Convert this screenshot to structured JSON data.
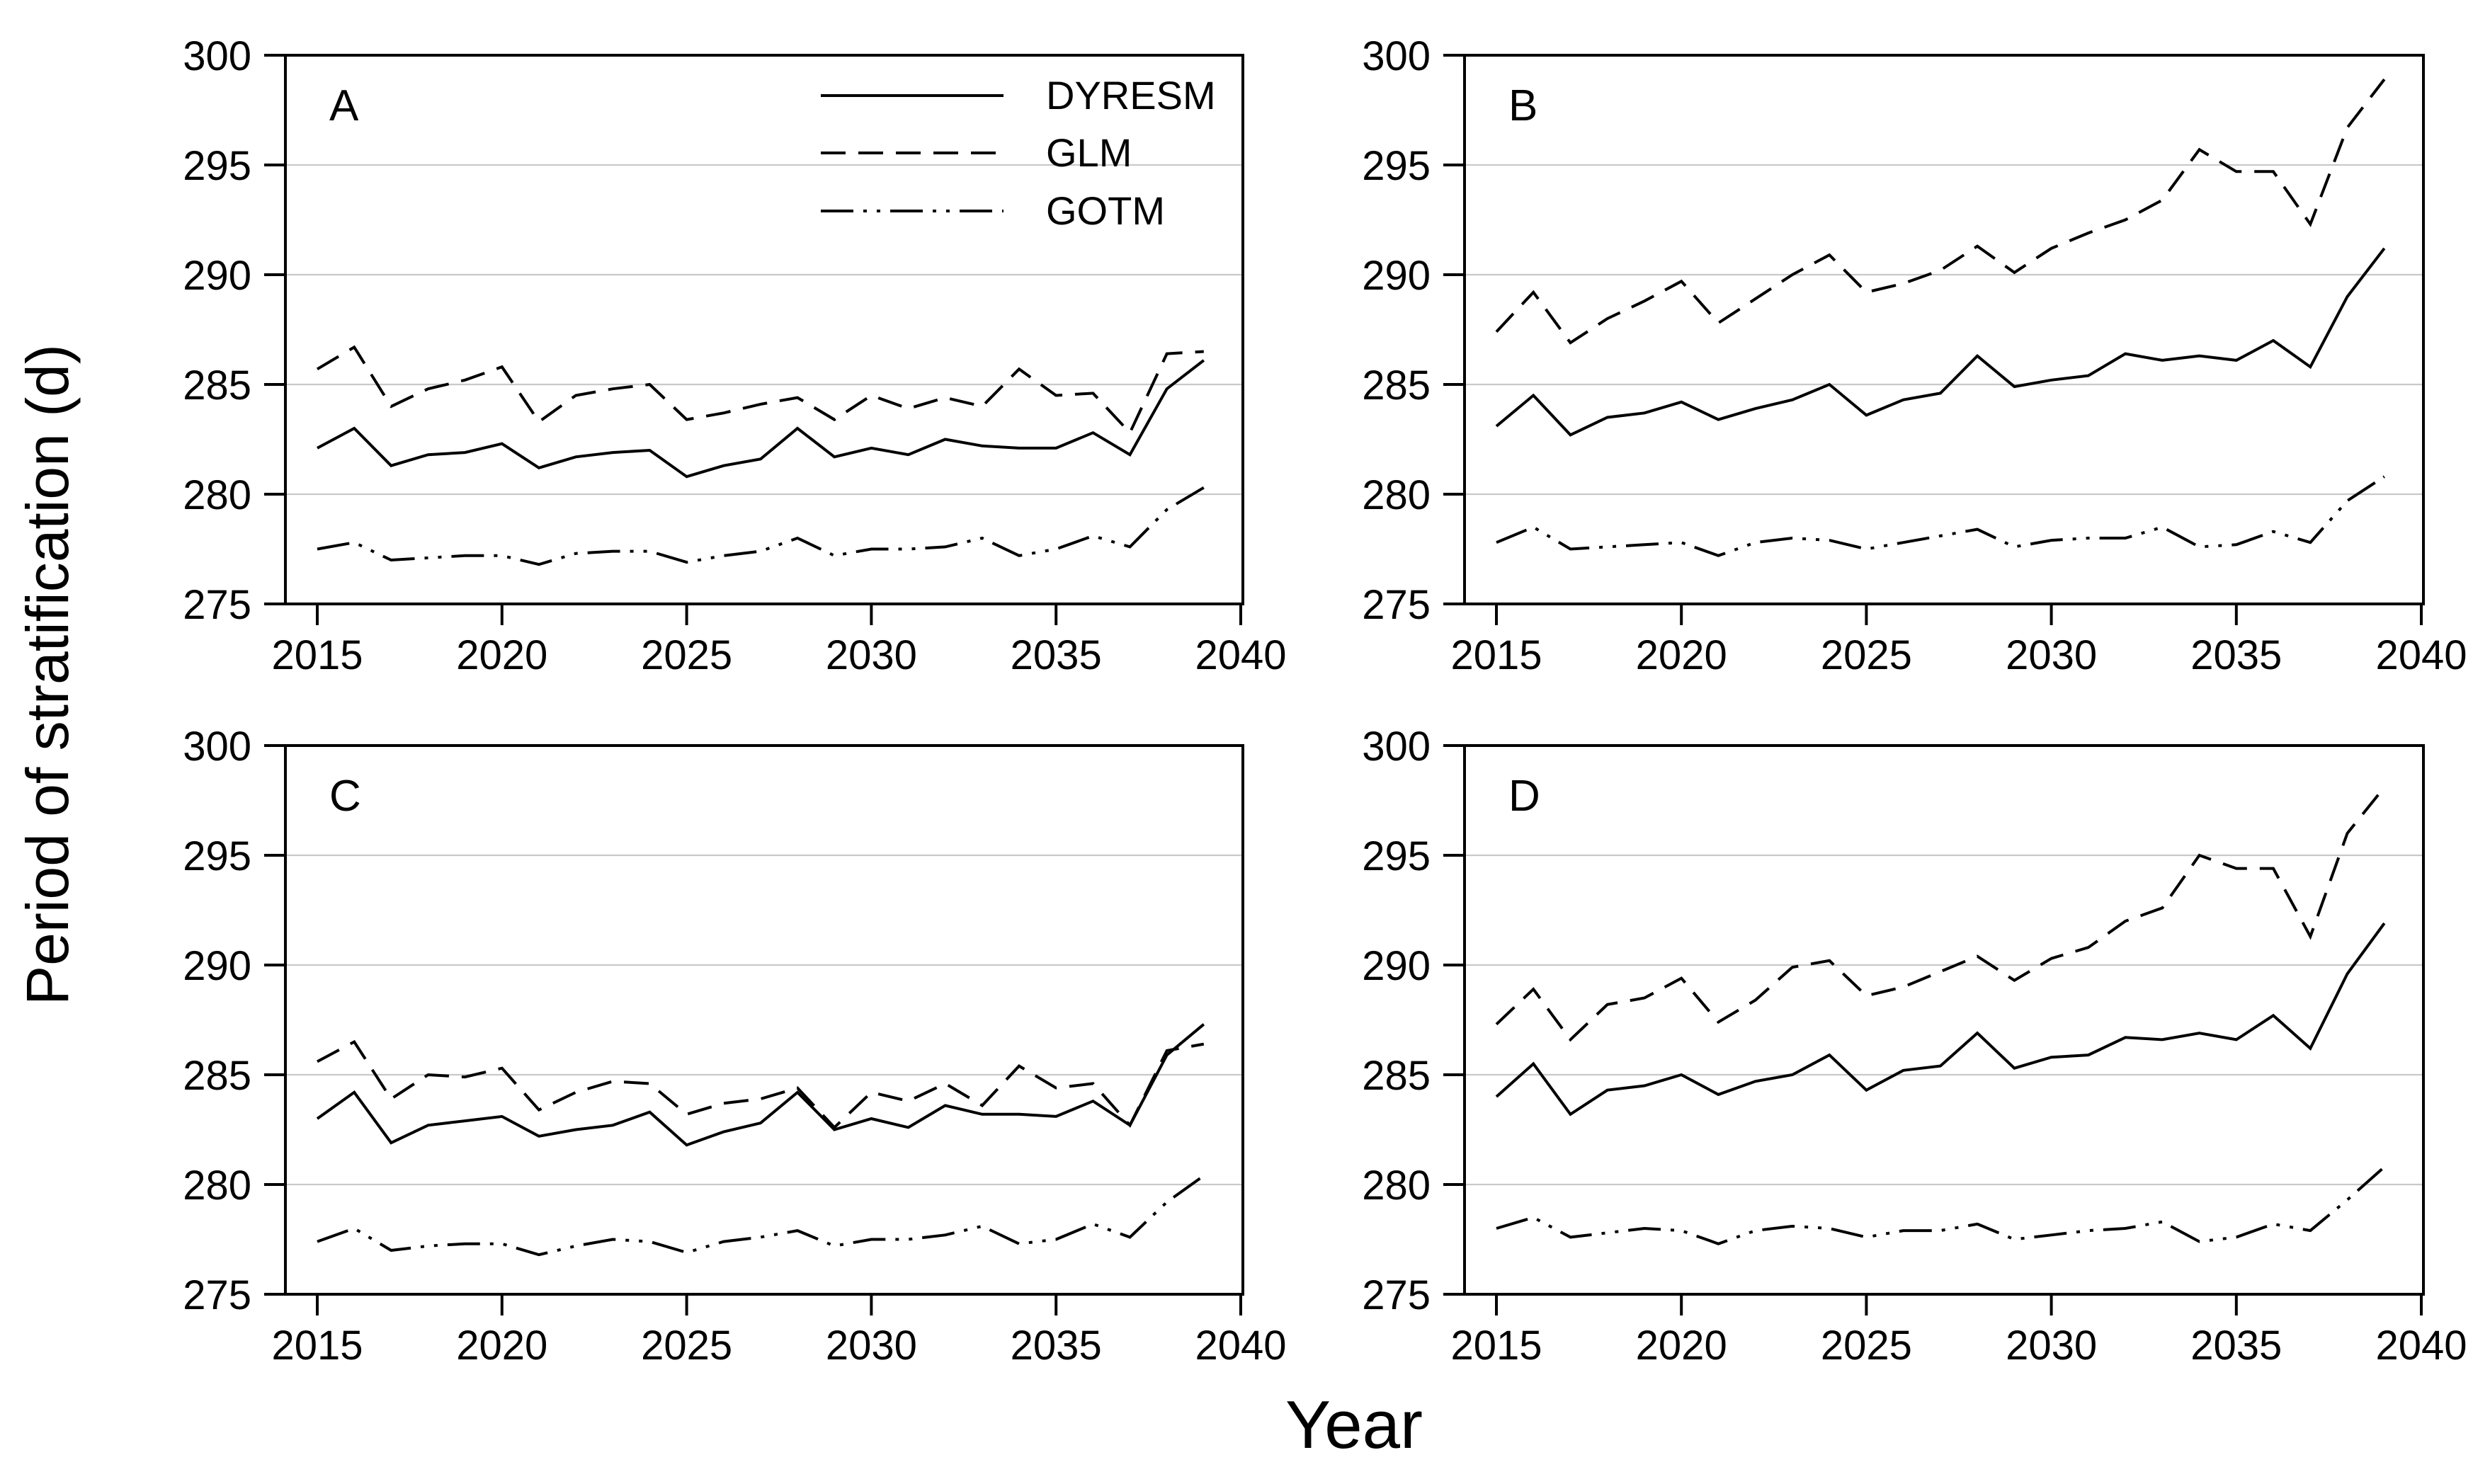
{
  "figure": {
    "x_axis_title": "Year",
    "y_axis_title": "Period of stratification (d)",
    "y_ticks": [
      300,
      295,
      290,
      285,
      280,
      275
    ],
    "x_ticks": [
      2015,
      2020,
      2025,
      2030,
      2035,
      2040
    ],
    "ylim": [
      275,
      300
    ],
    "xlim": [
      2015,
      2040
    ],
    "grid": true,
    "legend_position": "top of panel A",
    "legend": [
      {
        "label": "DYRESM",
        "line_style": "solid"
      },
      {
        "label": "GLM",
        "line_style": "dashed"
      },
      {
        "label": "GOTM",
        "line_style": "dash-dot-dot"
      }
    ],
    "colors": {
      "line": "#000000",
      "grid": "#c9c9c9",
      "background": "#ffffff"
    }
  },
  "chart_data": [
    {
      "type": "line",
      "panel_label": "A",
      "x": [
        2015,
        2016,
        2017,
        2018,
        2019,
        2020,
        2021,
        2022,
        2023,
        2024,
        2025,
        2026,
        2027,
        2028,
        2029,
        2030,
        2031,
        2032,
        2033,
        2034,
        2035,
        2036,
        2037,
        2038,
        2039
      ],
      "series": [
        {
          "name": "DYRESM",
          "line_style": "solid",
          "values": [
            282.1,
            283.0,
            281.3,
            281.8,
            281.9,
            282.3,
            281.2,
            281.7,
            281.9,
            282.0,
            280.8,
            281.3,
            281.6,
            283.0,
            281.7,
            282.1,
            281.8,
            282.5,
            282.2,
            282.1,
            282.1,
            282.8,
            281.8,
            284.8,
            286.1
          ]
        },
        {
          "name": "GLM",
          "line_style": "dashed",
          "values": [
            285.7,
            286.7,
            284.0,
            284.8,
            285.2,
            285.8,
            283.3,
            284.5,
            284.8,
            285.0,
            283.4,
            283.7,
            284.1,
            284.4,
            283.4,
            284.5,
            283.9,
            284.4,
            284.0,
            285.7,
            284.5,
            284.6,
            282.8,
            286.4,
            286.5
          ]
        },
        {
          "name": "GOTM",
          "line_style": "dash-dot-dot",
          "values": [
            277.5,
            277.8,
            277.0,
            277.1,
            277.2,
            277.2,
            276.8,
            277.3,
            277.4,
            277.4,
            276.9,
            277.2,
            277.4,
            278.0,
            277.2,
            277.5,
            277.5,
            277.6,
            278.0,
            277.2,
            277.5,
            278.1,
            277.6,
            279.3,
            280.3
          ]
        }
      ],
      "ylim": [
        275,
        300
      ]
    },
    {
      "type": "line",
      "panel_label": "B",
      "x": [
        2015,
        2016,
        2017,
        2018,
        2019,
        2020,
        2021,
        2022,
        2023,
        2024,
        2025,
        2026,
        2027,
        2028,
        2029,
        2030,
        2031,
        2032,
        2033,
        2034,
        2035,
        2036,
        2037,
        2038,
        2039
      ],
      "series": [
        {
          "name": "DYRESM",
          "line_style": "solid",
          "values": [
            283.1,
            284.5,
            282.7,
            283.5,
            283.7,
            284.2,
            283.4,
            283.9,
            284.3,
            285.0,
            283.6,
            284.3,
            284.6,
            286.3,
            284.9,
            285.2,
            285.4,
            286.4,
            286.1,
            286.3,
            286.1,
            287.0,
            285.8,
            289.0,
            291.2
          ]
        },
        {
          "name": "GLM",
          "line_style": "dashed",
          "values": [
            287.4,
            289.2,
            286.9,
            288.0,
            288.8,
            289.7,
            287.8,
            288.9,
            290.0,
            290.9,
            289.2,
            289.6,
            290.2,
            291.3,
            290.1,
            291.2,
            291.9,
            292.5,
            293.4,
            295.7,
            294.7,
            294.7,
            292.3,
            296.7,
            298.9
          ]
        },
        {
          "name": "GOTM",
          "line_style": "dash-dot-dot",
          "values": [
            277.8,
            278.5,
            277.5,
            277.6,
            277.7,
            277.8,
            277.2,
            277.8,
            278.0,
            277.9,
            277.5,
            277.8,
            278.1,
            278.4,
            277.6,
            277.9,
            278.0,
            278.0,
            278.5,
            277.6,
            277.7,
            278.3,
            277.8,
            279.7,
            280.8
          ]
        }
      ],
      "ylim": [
        275,
        300
      ]
    },
    {
      "type": "line",
      "panel_label": "C",
      "x": [
        2015,
        2016,
        2017,
        2018,
        2019,
        2020,
        2021,
        2022,
        2023,
        2024,
        2025,
        2026,
        2027,
        2028,
        2029,
        2030,
        2031,
        2032,
        2033,
        2034,
        2035,
        2036,
        2037,
        2038,
        2039
      ],
      "series": [
        {
          "name": "DYRESM",
          "line_style": "solid",
          "values": [
            283.0,
            284.2,
            281.9,
            282.7,
            282.9,
            283.1,
            282.2,
            282.5,
            282.7,
            283.3,
            281.8,
            282.4,
            282.8,
            284.2,
            282.5,
            283.0,
            282.6,
            283.6,
            283.2,
            283.2,
            283.1,
            283.8,
            282.7,
            285.9,
            287.3
          ]
        },
        {
          "name": "GLM",
          "line_style": "dashed",
          "values": [
            285.6,
            286.5,
            283.9,
            285.0,
            284.9,
            285.3,
            283.4,
            284.2,
            284.7,
            284.6,
            283.2,
            283.7,
            283.9,
            284.4,
            282.6,
            284.2,
            283.8,
            284.6,
            283.6,
            285.4,
            284.4,
            284.6,
            282.7,
            286.1,
            286.4
          ]
        },
        {
          "name": "GOTM",
          "line_style": "dash-dot-dot",
          "values": [
            277.4,
            278.0,
            277.0,
            277.2,
            277.3,
            277.3,
            276.8,
            277.2,
            277.5,
            277.4,
            276.9,
            277.4,
            277.6,
            277.9,
            277.2,
            277.5,
            277.5,
            277.7,
            278.1,
            277.3,
            277.5,
            278.2,
            277.6,
            279.2,
            280.4
          ]
        }
      ],
      "ylim": [
        275,
        300
      ]
    },
    {
      "type": "line",
      "panel_label": "D",
      "x": [
        2015,
        2016,
        2017,
        2018,
        2019,
        2020,
        2021,
        2022,
        2023,
        2024,
        2025,
        2026,
        2027,
        2028,
        2029,
        2030,
        2031,
        2032,
        2033,
        2034,
        2035,
        2036,
        2037,
        2038,
        2039
      ],
      "series": [
        {
          "name": "DYRESM",
          "line_style": "solid",
          "values": [
            284.0,
            285.5,
            283.2,
            284.3,
            284.5,
            285.0,
            284.1,
            284.7,
            285.0,
            285.9,
            284.3,
            285.2,
            285.4,
            286.9,
            285.3,
            285.8,
            285.9,
            286.7,
            286.6,
            286.9,
            286.6,
            287.7,
            286.2,
            289.6,
            291.9
          ]
        },
        {
          "name": "GLM",
          "line_style": "dashed",
          "values": [
            287.3,
            288.9,
            286.6,
            288.2,
            288.5,
            289.4,
            287.4,
            288.4,
            289.9,
            290.2,
            288.6,
            289.0,
            289.7,
            290.4,
            289.3,
            290.3,
            290.8,
            292.0,
            292.6,
            295.0,
            294.4,
            294.4,
            291.3,
            296.0,
            298.1
          ]
        },
        {
          "name": "GOTM",
          "line_style": "dash-dot-dot",
          "values": [
            278.0,
            278.5,
            277.6,
            277.8,
            278.0,
            277.9,
            277.3,
            277.9,
            278.1,
            278.0,
            277.6,
            277.9,
            277.9,
            278.2,
            277.5,
            277.7,
            277.9,
            278.0,
            278.3,
            277.4,
            277.6,
            278.2,
            277.9,
            279.3,
            280.8
          ]
        }
      ],
      "ylim": [
        275,
        300
      ]
    }
  ]
}
